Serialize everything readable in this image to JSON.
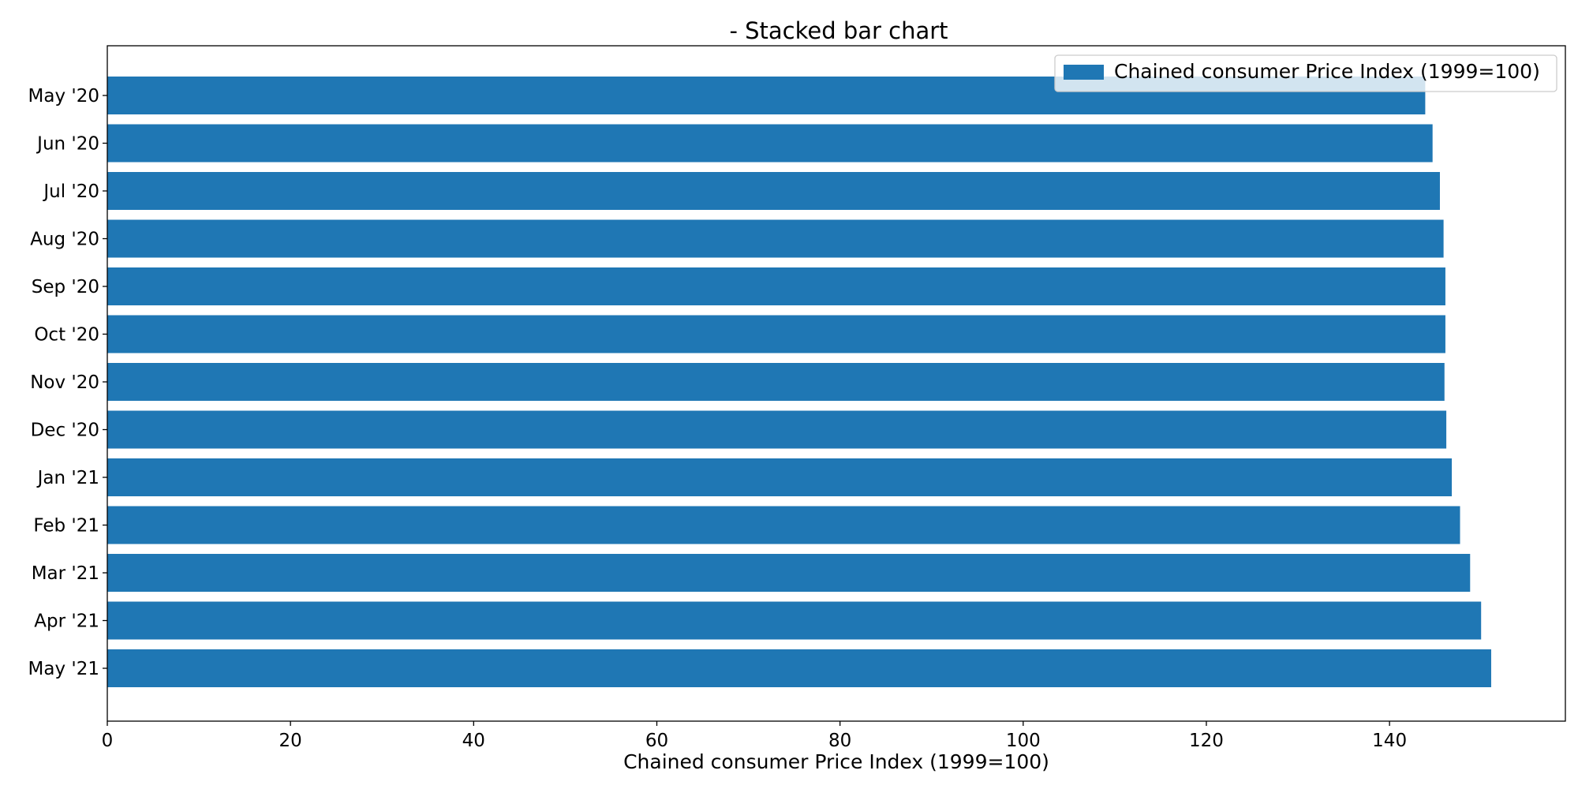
{
  "chart_data": {
    "type": "bar",
    "orientation": "horizontal",
    "title": "- Stacked bar chart",
    "xlabel": "Chained consumer Price Index (1999=100)",
    "ylabel": "",
    "xlim": [
      0,
      159.2
    ],
    "xticks": [
      0,
      20,
      40,
      60,
      80,
      100,
      120,
      140
    ],
    "categories": [
      "May '20",
      "Jun '20",
      "Jul '20",
      "Aug '20",
      "Sep '20",
      "Oct '20",
      "Nov '20",
      "Dec '20",
      "Jan '21",
      "Feb '21",
      "Mar '21",
      "Apr '21",
      "May '21"
    ],
    "series": [
      {
        "name": "Chained consumer Price Index (1999=100)",
        "color": "#1f77b4",
        "values": [
          143.9,
          144.7,
          145.5,
          145.9,
          146.1,
          146.1,
          146.0,
          146.2,
          146.8,
          147.7,
          148.8,
          150.0,
          151.1
        ]
      }
    ],
    "legend_position": "top-right",
    "grid": false
  }
}
